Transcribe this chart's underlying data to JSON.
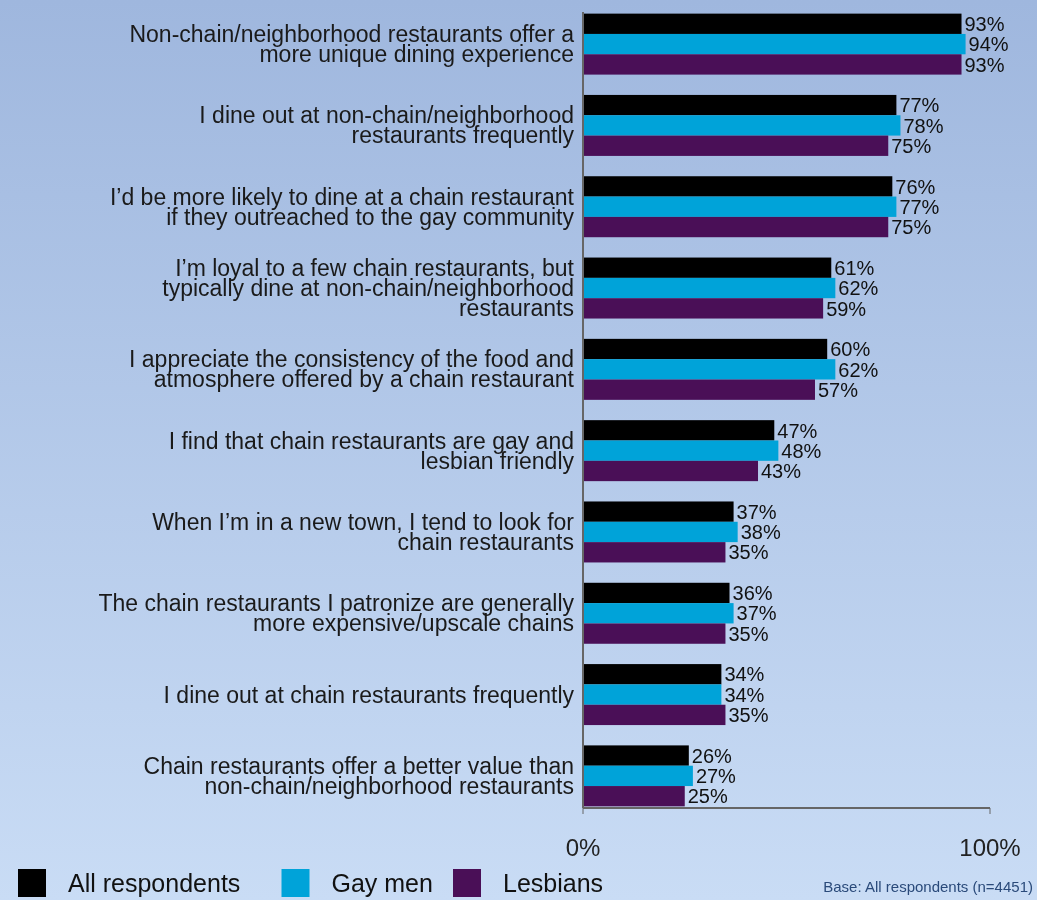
{
  "chart_data": {
    "type": "bar",
    "orientation": "horizontal",
    "categories": [
      "Non-chain/neighborhood restaurants offer a\nmore unique dining experience",
      "I dine out at non-chain/neighborhood\nrestaurants frequently",
      "I’d be more likely to dine at a chain restaurant\nif they outreached to the gay community",
      "I’m loyal to a few chain restaurants, but\ntypically dine at non-chain/neighborhood\nrestaurants",
      "I appreciate the consistency of the food and\natmosphere offered by a chain restaurant",
      "I find that chain restaurants are gay and\nlesbian friendly",
      "When I’m in a new town, I tend to look for\nchain restaurants",
      "The chain restaurants I patronize are generally\nmore expensive/upscale chains",
      "I dine out at chain restaurants frequently",
      "Chain restaurants offer a better value than\nnon-chain/neighborhood restaurants"
    ],
    "series": [
      {
        "name": "All respondents",
        "color": "#000000",
        "values": [
          93,
          77,
          76,
          61,
          60,
          47,
          37,
          36,
          34,
          26
        ],
        "value_labels": [
          "93%",
          "77%",
          "76%",
          "61%",
          "60%",
          "47%",
          "37%",
          "36%",
          "34%",
          "26%"
        ]
      },
      {
        "name": "Gay men",
        "color": "#00a3d9",
        "values": [
          94,
          78,
          77,
          62,
          62,
          48,
          38,
          37,
          34,
          27
        ],
        "value_labels": [
          "94%",
          "78%",
          "77%",
          "62%",
          "62%",
          "48%",
          "38%",
          "37%",
          "34%",
          "27%"
        ]
      },
      {
        "name": "Lesbians",
        "color": "#4a0f57",
        "values": [
          93,
          75,
          75,
          59,
          57,
          43,
          35,
          35,
          35,
          25
        ],
        "value_labels": [
          "93%",
          "75%",
          "75%",
          "59%",
          "57%",
          "43%",
          "35%",
          "35%",
          "35%",
          "25%"
        ]
      }
    ],
    "xlim": [
      0,
      100
    ],
    "xticks": [
      {
        "value": 0,
        "label": "0%"
      },
      {
        "value": 100,
        "label": "100%"
      }
    ],
    "grid": false,
    "legend": "bottom left",
    "annotations": [
      "Base:  All respondents (n=4451)"
    ]
  }
}
